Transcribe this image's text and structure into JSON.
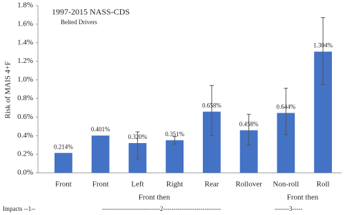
{
  "chart_data": {
    "type": "bar",
    "title": "1997-2015 NASS-CDS",
    "subtitle": "Belted Drivers",
    "y_label": "Risk of MAIS 4+F",
    "categories": [
      "Front",
      "Front",
      "Left",
      "Right",
      "Rear",
      "Rollover",
      "Non-roll",
      "Roll"
    ],
    "values": [
      0.214,
      0.401,
      0.32,
      0.351,
      0.658,
      0.458,
      0.644,
      1.304
    ],
    "value_labels": [
      "0.214%",
      "0.401%",
      "0.320%",
      "0.351%",
      "0.658%",
      "0.458%",
      "0.644%",
      "1.304%"
    ],
    "ci_low": [
      null,
      null,
      0.15,
      0.31,
      0.4,
      0.3,
      0.41,
      0.95
    ],
    "ci_high": [
      null,
      null,
      0.44,
      0.39,
      0.94,
      0.63,
      0.91,
      1.67
    ],
    "color": "#4472c4",
    "error_color": "#555555",
    "ylim": [
      0,
      1.8
    ],
    "yticks": [
      {
        "value": 0,
        "label": "0.0%"
      },
      {
        "value": 0.2,
        "label": "0.2%"
      },
      {
        "value": 0.4,
        "label": "0.4%"
      },
      {
        "value": 0.6,
        "label": "0.6%"
      },
      {
        "value": 0.8,
        "label": "0.8%"
      },
      {
        "value": 1.0,
        "label": "1.0%"
      },
      {
        "value": 1.2,
        "label": "1.2%"
      },
      {
        "value": 1.4,
        "label": "1.4%"
      },
      {
        "value": 1.6,
        "label": "1.6%"
      },
      {
        "value": 1.8,
        "label": "1.8%"
      }
    ],
    "grid": false,
    "annotations": [
      "Front then",
      "Front then",
      "Impacts  --1--",
      "----------------------------2----------------------------",
      "-------3-----"
    ]
  }
}
